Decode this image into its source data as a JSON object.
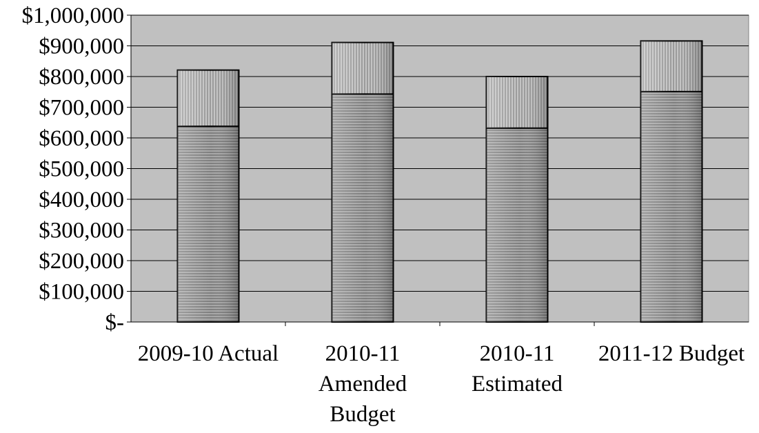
{
  "chart_data": {
    "type": "bar",
    "stacked": true,
    "categories": [
      [
        "2009-10 Actual"
      ],
      [
        "2010-11",
        "Amended",
        "Budget"
      ],
      [
        "2010-11",
        "Estimated"
      ],
      [
        "2011-12 Budget"
      ]
    ],
    "series": [
      {
        "values": [
          638000,
          743000,
          632000,
          751000
        ]
      },
      {
        "values": [
          183000,
          168000,
          168000,
          165000
        ]
      }
    ],
    "totals": [
      821000,
      911000,
      800000,
      916000
    ],
    "ylim": [
      0,
      1000000
    ],
    "yticks": [
      0,
      100000,
      200000,
      300000,
      400000,
      500000,
      600000,
      700000,
      800000,
      900000,
      1000000
    ],
    "ytick_labels": [
      "$-",
      "$100,000",
      "$200,000",
      "$300,000",
      "$400,000",
      "$500,000",
      "$600,000",
      "$700,000",
      "$800,000",
      "$900,000",
      "$1,000,000"
    ],
    "grid": true,
    "legend": "none",
    "colors": {
      "plot_background": "#c0c0c0",
      "lower_fill": "#9a9a9a",
      "upper_fill": "#bdbdbd",
      "gridline": "#000000"
    }
  }
}
